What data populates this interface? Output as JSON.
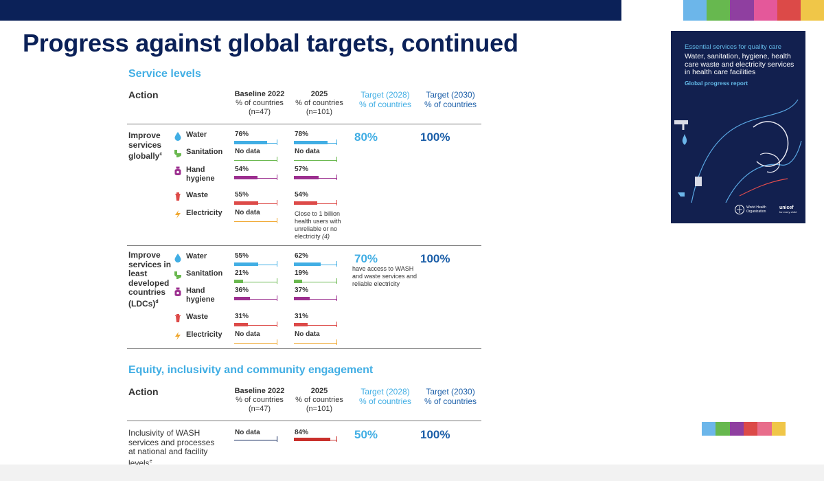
{
  "slide": {
    "title": "Progress against global targets, continued",
    "palette": [
      "#6cb6ea",
      "#67b84f",
      "#8f3fa0",
      "#e4589a",
      "#dc4a48",
      "#f0c648"
    ]
  },
  "icons": {
    "water": "water-drop-icon",
    "sanitation": "toilet-icon",
    "hand_hygiene": "soap-icon",
    "waste": "waste-bin-icon",
    "electricity": "lightning-icon"
  },
  "colors": {
    "water": "#41aee4",
    "sanitation": "#6ab84f",
    "hand_hygiene": "#9c2f8f",
    "waste": "#dd4a48",
    "electricity": "#f0a830",
    "equity_bar": "#c9302c",
    "navy": "#0b2158"
  },
  "service_levels": {
    "section_title": "Service levels",
    "headers": {
      "action": "Action",
      "baseline": [
        "Baseline 2022",
        "% of countries",
        "(n=47)"
      ],
      "y2025": [
        "2025",
        "% of countries",
        "(n=101)"
      ],
      "target2028": [
        "Target (2028)",
        "% of countries"
      ],
      "target2030": [
        "Target (2030)",
        "% of countries"
      ]
    },
    "groups": [
      {
        "action": "Improve services globally",
        "footnote": "c",
        "target_2028": "80%",
        "target_2028_note": "",
        "target_2030": "100%",
        "rows": [
          {
            "service": "Water",
            "baseline": "76%",
            "baseline_value": 76,
            "y2025": "78%",
            "y2025_value": 78
          },
          {
            "service": "Sanitation",
            "baseline": "No data",
            "baseline_value": null,
            "y2025": "No data",
            "y2025_value": null
          },
          {
            "service": "Hand hygiene",
            "baseline": "54%",
            "baseline_value": 54,
            "y2025": "57%",
            "y2025_value": 57
          },
          {
            "service": "Waste",
            "baseline": "55%",
            "baseline_value": 55,
            "y2025": "54%",
            "y2025_value": 54
          },
          {
            "service": "Electricity",
            "baseline": "No data",
            "baseline_value": null,
            "y2025": "Close to 1 billion health users with unreliable or no electricity",
            "y2025_ref": "(4)",
            "y2025_value": null
          }
        ]
      },
      {
        "action": "Improve services in least developed countries (LDCs)",
        "footnote": "d",
        "target_2028": "70%",
        "target_2028_note": "have access to WASH and waste services and reliable electricity",
        "target_2030": "100%",
        "rows": [
          {
            "service": "Water",
            "baseline": "55%",
            "baseline_value": 55,
            "y2025": "62%",
            "y2025_value": 62
          },
          {
            "service": "Sanitation",
            "baseline": "21%",
            "baseline_value": 21,
            "y2025": "19%",
            "y2025_value": 19
          },
          {
            "service": "Hand hygiene",
            "baseline": "36%",
            "baseline_value": 36,
            "y2025": "37%",
            "y2025_value": 37
          },
          {
            "service": "Waste",
            "baseline": "31%",
            "baseline_value": 31,
            "y2025": "31%",
            "y2025_value": 31
          },
          {
            "service": "Electricity",
            "baseline": "No data",
            "baseline_value": null,
            "y2025": "No data",
            "y2025_value": null
          }
        ]
      }
    ]
  },
  "equity": {
    "section_title": "Equity, inclusivity and community engagement",
    "headers": {
      "action": "Action",
      "baseline": [
        "Baseline 2022",
        "% of countries",
        "(n=47)"
      ],
      "y2025": [
        "2025",
        "% of countries",
        "(n=101)"
      ],
      "target2028": [
        "Target (2028)",
        "% of countries"
      ],
      "target2030": [
        "Target (2030)",
        "% of countries"
      ]
    },
    "row": {
      "action": "Inclusivity of WASH services and processes at national and facility levels",
      "footnote": "e",
      "baseline": "No data",
      "baseline_value": null,
      "y2025": "84%",
      "y2025_value": 84,
      "target_2028": "50%",
      "target_2030": "100%"
    }
  },
  "cover": {
    "kicker": "Essential services for quality care",
    "title": "Water, sanitation, hygiene, health care waste and electricity services in health care facilities",
    "subtitle": "Global progress report",
    "logo_who": "World Health Organization",
    "logo_unicef": "unicef",
    "logo_unicef_tagline": "for every child"
  }
}
